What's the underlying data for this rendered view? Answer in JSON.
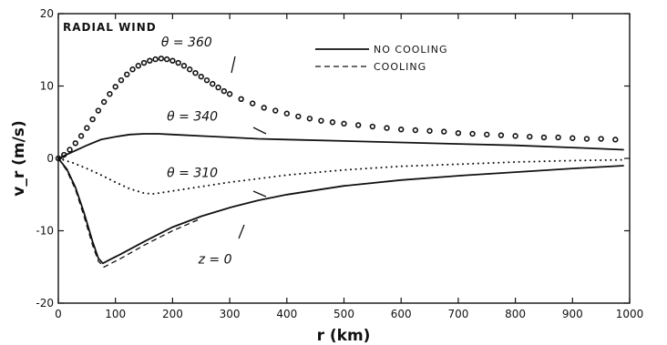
{
  "chart_data": {
    "type": "line",
    "title": "RADIAL WIND",
    "xlabel": "r (km)",
    "ylabel": "v_r (m/s)",
    "xlim": [
      0,
      1000
    ],
    "ylim": [
      -20,
      20
    ],
    "x_ticks": [
      0,
      100,
      200,
      300,
      400,
      500,
      600,
      700,
      800,
      900,
      1000
    ],
    "y_ticks": [
      -20,
      -10,
      0,
      10,
      20
    ],
    "grid": false,
    "legend_position": "top-center",
    "legend": [
      {
        "label": "NO COOLING",
        "style": "solid"
      },
      {
        "label": "COOLING",
        "style": "dashed"
      }
    ],
    "annotations": [
      {
        "text": "θ = 360",
        "x": 180,
        "y": 15.5
      },
      {
        "text": "θ = 340",
        "x": 190,
        "y": 5.2
      },
      {
        "text": "θ = 310",
        "x": 190,
        "y": -2.6
      },
      {
        "text": "z = 0",
        "x": 245,
        "y": -14.5
      }
    ],
    "series": [
      {
        "style": "circles",
        "x": [
          0,
          10,
          20,
          30,
          40,
          50,
          60,
          70,
          80,
          90,
          100,
          110,
          120,
          130,
          140,
          150,
          160,
          170,
          180,
          190,
          200,
          210,
          220,
          230,
          240,
          250,
          260,
          270,
          280,
          290,
          300,
          320,
          340,
          360,
          380,
          400,
          420,
          440,
          460,
          480,
          500,
          525,
          550,
          575,
          600,
          625,
          650,
          675,
          700,
          725,
          750,
          775,
          800,
          825,
          850,
          875,
          900,
          925,
          950,
          975
        ],
        "y": [
          0,
          0.5,
          1.2,
          2.1,
          3.1,
          4.2,
          5.4,
          6.6,
          7.8,
          8.9,
          9.9,
          10.8,
          11.6,
          12.3,
          12.8,
          13.2,
          13.5,
          13.7,
          13.8,
          13.7,
          13.5,
          13.2,
          12.8,
          12.3,
          11.8,
          11.3,
          10.8,
          10.3,
          9.8,
          9.3,
          8.9,
          8.2,
          7.6,
          7.0,
          6.6,
          6.2,
          5.8,
          5.5,
          5.2,
          5.0,
          4.8,
          4.6,
          4.4,
          4.2,
          4.0,
          3.9,
          3.8,
          3.7,
          3.5,
          3.4,
          3.3,
          3.2,
          3.1,
          3.0,
          2.9,
          2.9,
          2.8,
          2.7,
          2.7,
          2.6
        ]
      },
      {
        "style": "solid",
        "x": [
          0,
          25,
          50,
          75,
          100,
          125,
          150,
          175,
          200,
          250,
          300,
          350,
          400,
          500,
          600,
          700,
          800,
          900,
          990
        ],
        "y": [
          0,
          0.9,
          1.8,
          2.6,
          3.0,
          3.3,
          3.4,
          3.4,
          3.3,
          3.1,
          2.9,
          2.7,
          2.6,
          2.4,
          2.2,
          2.0,
          1.8,
          1.5,
          1.2
        ]
      },
      {
        "style": "dotted",
        "x": [
          0,
          25,
          50,
          75,
          100,
          125,
          150,
          165,
          175,
          200,
          250,
          300,
          350,
          400,
          500,
          600,
          700,
          800,
          900,
          990
        ],
        "y": [
          0,
          -0.6,
          -1.4,
          -2.3,
          -3.3,
          -4.2,
          -4.8,
          -4.9,
          -4.8,
          -4.5,
          -3.9,
          -3.3,
          -2.8,
          -2.3,
          -1.6,
          -1.1,
          -0.8,
          -0.5,
          -0.3,
          -0.2
        ]
      },
      {
        "name": "NO COOLING",
        "style": "solid",
        "x": [
          0,
          15,
          30,
          45,
          60,
          70,
          78,
          90,
          110,
          150,
          200,
          250,
          300,
          350,
          400,
          500,
          600,
          700,
          800,
          900,
          990
        ],
        "y": [
          0,
          -1.5,
          -4,
          -7.5,
          -11.5,
          -13.8,
          -14.5,
          -14.0,
          -13.2,
          -11.5,
          -9.5,
          -8.0,
          -6.8,
          -5.8,
          -5.0,
          -3.8,
          -3.0,
          -2.4,
          -1.9,
          -1.4,
          -1.0
        ]
      },
      {
        "name": "COOLING",
        "style": "dashed",
        "x": [
          0,
          15,
          30,
          45,
          60,
          70,
          80,
          90,
          110,
          150,
          200,
          250
        ],
        "y": [
          0,
          -1.7,
          -4.3,
          -8,
          -12,
          -14.2,
          -15.0,
          -14.6,
          -13.8,
          -12.0,
          -10.0,
          -8.3
        ]
      }
    ]
  }
}
